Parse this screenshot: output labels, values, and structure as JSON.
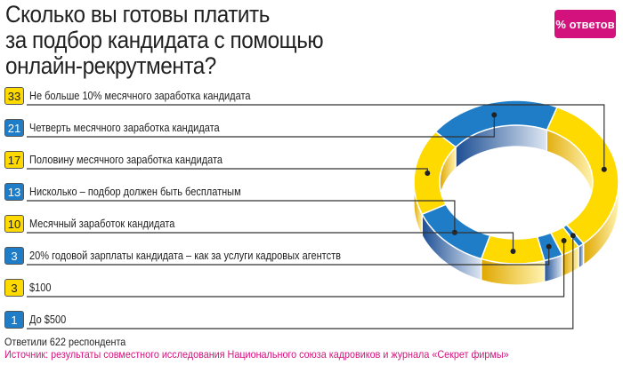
{
  "title": "Сколько вы готовы платить за подбор кандидата с помощью онлайн-рекрутмента?",
  "title_lines": [
    "Сколько вы готовы платить",
    "за подбор кандидата с помощью",
    "онлайн-рекрутмента?"
  ],
  "badge": "% ответов",
  "respondents": "Ответили 622 респондента",
  "source": "Источник: результаты совместного исследования Национального союза кадровиков и журнала «Секрет фирмы»",
  "colors": {
    "yellow": "#FFDA00",
    "blue": "#1F7CC6",
    "accent": "#D4127E"
  },
  "chart_data": {
    "type": "pie",
    "variant": "3d-donut",
    "title": "Сколько вы готовы платить за подбор кандидата с помощью онлайн-рекрутмента?",
    "unit": "% ответов",
    "categories": [
      "Не больше 10% месячного заработка кандидата",
      "Четверть месячного заработка кандидата",
      "Половину месячного заработка кандидата",
      "Нисколько – подбор должен быть бесплатным",
      "Месячный заработок кандидата",
      "20% годовой зарплаты кандидата – как за услуги кадровых агентств",
      "$100",
      "До $500"
    ],
    "values": [
      33,
      21,
      17,
      13,
      10,
      3,
      3,
      1
    ],
    "slice_colors": [
      "yellow",
      "blue",
      "yellow",
      "blue",
      "yellow",
      "blue",
      "yellow",
      "blue"
    ],
    "ring_order_clockwise": [
      0,
      7,
      6,
      5,
      4,
      3,
      2,
      1
    ]
  }
}
